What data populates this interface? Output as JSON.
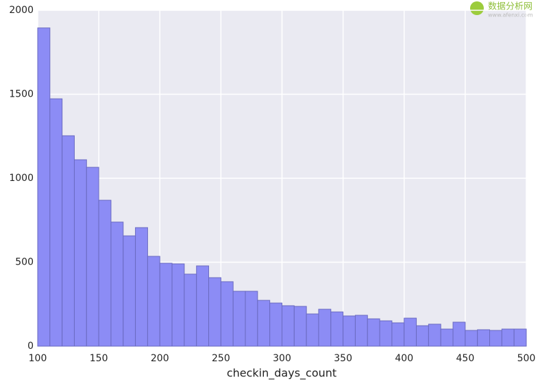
{
  "chart_data": {
    "type": "histogram",
    "xlabel": "checkin_days_count",
    "bins": [
      100,
      110,
      120,
      130,
      140,
      150,
      160,
      170,
      180,
      190,
      200,
      210,
      220,
      230,
      240,
      250,
      260,
      270,
      280,
      290,
      300,
      310,
      320,
      330,
      340,
      350,
      360,
      370,
      380,
      390,
      400,
      410,
      420,
      430,
      440,
      450,
      460,
      470,
      480,
      490,
      500
    ],
    "values": [
      1895,
      1473,
      1253,
      1110,
      1065,
      869,
      739,
      657,
      706,
      535,
      494,
      490,
      429,
      478,
      408,
      384,
      327,
      327,
      273,
      257,
      241,
      237,
      192,
      220,
      204,
      180,
      184,
      163,
      151,
      139,
      167,
      122,
      131,
      102,
      143,
      94,
      98,
      94,
      102,
      102
    ],
    "color": "#8c8cf5",
    "xlim": [
      100,
      500
    ],
    "xticks": [
      100,
      150,
      200,
      250,
      300,
      350,
      400,
      450,
      500
    ],
    "ylim": [
      0,
      2000
    ],
    "yticks": [
      0,
      500,
      1000,
      1500,
      2000
    ],
    "grid": true
  },
  "watermark": {
    "name": "数据分析网",
    "url": "www.afenxi.com"
  }
}
